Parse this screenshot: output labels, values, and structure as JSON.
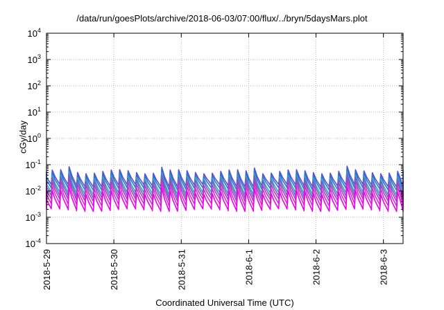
{
  "chart_data": {
    "type": "line",
    "title": "/data/run/goesPlots/archive/2018-06-03/07:00/flux/../bryn/5daysMars.plot",
    "xlabel": "Coordinated Universal Time (UTC)",
    "ylabel": "cGy/day",
    "y_scale": "log",
    "ylim": [
      0.0001,
      10000
    ],
    "y_ticks": [
      {
        "value": 0.0001,
        "base": "10",
        "exp": "-4"
      },
      {
        "value": 0.001,
        "base": "10",
        "exp": "-3"
      },
      {
        "value": 0.01,
        "base": "10",
        "exp": "-2"
      },
      {
        "value": 0.1,
        "base": "10",
        "exp": "-1"
      },
      {
        "value": 1,
        "base": "10",
        "exp": "0"
      },
      {
        "value": 10,
        "base": "10",
        "exp": "1"
      },
      {
        "value": 100,
        "base": "10",
        "exp": "2"
      },
      {
        "value": 1000,
        "base": "10",
        "exp": "3"
      },
      {
        "value": 10000,
        "base": "10",
        "exp": "4"
      }
    ],
    "xlim": [
      "2018-05-29 00:00",
      "2018-06-03 07:00"
    ],
    "x_ticks": [
      "2018-5-29",
      "2018-5-30",
      "2018-5-31",
      "2018-6-1",
      "2018-6-2",
      "2018-6-3"
    ],
    "grid": true,
    "pattern": "sawtooth, period about 3 hours: sharp rise then decay",
    "series": [
      {
        "color": "#5a4fcf",
        "peak": 0.055,
        "trough": 0.016
      },
      {
        "color": "#2f6fd6",
        "peak": 0.045,
        "trough": 0.012
      },
      {
        "color": "#2aa6b8",
        "peak": 0.035,
        "trough": 0.008
      },
      {
        "color": "#7b5fc8",
        "peak": 0.028,
        "trough": 0.006
      },
      {
        "color": "#a63fc0",
        "peak": 0.02,
        "trough": 0.0045
      },
      {
        "color": "#d62fd0",
        "peak": 0.014,
        "trough": 0.003
      },
      {
        "color": "#ee00ee",
        "peak": 0.009,
        "trough": 0.0019
      }
    ]
  }
}
